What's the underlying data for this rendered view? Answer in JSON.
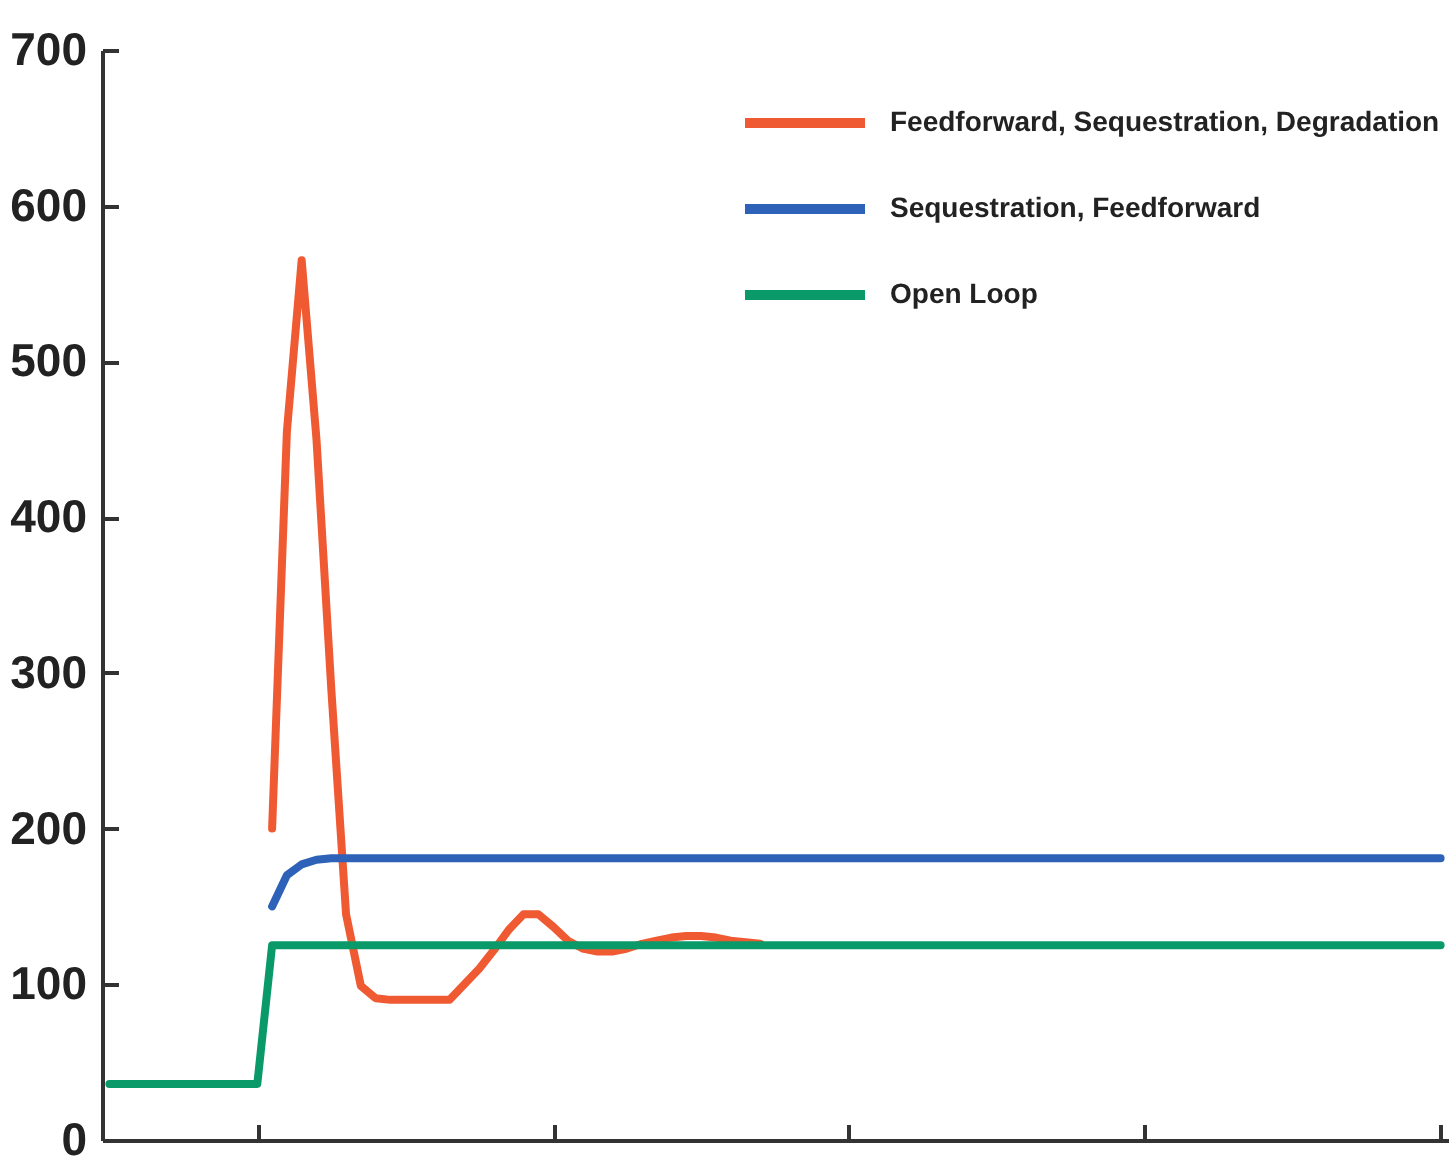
{
  "chart_data": {
    "type": "line",
    "categories": [
      null,
      null,
      null,
      null,
      null,
      null,
      null,
      null,
      null,
      null,
      null,
      null,
      null,
      null,
      null,
      null,
      null,
      null,
      null,
      null,
      null,
      null,
      null,
      null,
      null,
      null,
      null,
      null,
      null,
      null,
      null,
      null,
      null,
      null,
      null,
      null,
      null,
      null,
      null,
      null,
      null,
      null,
      null,
      null,
      null,
      null,
      null,
      null,
      null,
      null,
      null,
      null,
      null,
      null,
      null,
      null,
      null,
      null,
      null,
      null,
      null,
      null,
      null,
      null,
      null,
      null,
      null,
      null,
      null,
      null,
      null,
      null,
      null,
      null,
      null,
      null,
      null,
      null,
      null,
      null,
      null,
      null,
      null,
      null,
      null,
      null,
      null,
      null,
      null,
      null,
      null
    ],
    "ylim": [
      0,
      700
    ],
    "yticks": [
      0,
      100,
      200,
      300,
      400,
      500,
      600,
      700
    ],
    "tick_labels": "y",
    "legend": "top right",
    "series": [
      {
        "name": "Feedforward, Sequestration, Degradation",
        "color": "#f05a32",
        "values": [
          null,
          null,
          null,
          null,
          null,
          null,
          null,
          null,
          null,
          null,
          null,
          200,
          455,
          565,
          450,
          290,
          145,
          99,
          91,
          90,
          90,
          90,
          90,
          90,
          100,
          110,
          122,
          135,
          145,
          145,
          137,
          128,
          123,
          121,
          121,
          123,
          126,
          128,
          130,
          131,
          131,
          130,
          128,
          127,
          126,
          null,
          null,
          null,
          null,
          null,
          null,
          null,
          null,
          null,
          null,
          null,
          null,
          null,
          null,
          null,
          null,
          null,
          null,
          null,
          null,
          null,
          null,
          null,
          null,
          null,
          null,
          null,
          null,
          null,
          null,
          null,
          null,
          null,
          null,
          null,
          null,
          null,
          null,
          null,
          null,
          null,
          null,
          null,
          null,
          null,
          null
        ]
      },
      {
        "name": "Sequestration, Feedforward",
        "color": "#2e62b8",
        "values": [
          null,
          null,
          null,
          null,
          null,
          null,
          null,
          null,
          null,
          null,
          null,
          150,
          170,
          177,
          180,
          181,
          181,
          181,
          181,
          181,
          181,
          181,
          181,
          181,
          181,
          181,
          181,
          181,
          181,
          181,
          181,
          181,
          181,
          181,
          181,
          181,
          181,
          181,
          181,
          181,
          181,
          181,
          181,
          181,
          181,
          181,
          181,
          181,
          181,
          181,
          181,
          181,
          181,
          181,
          181,
          181,
          181,
          181,
          181,
          181,
          181,
          181,
          181,
          181,
          181,
          181,
          181,
          181,
          181,
          181,
          181,
          181,
          181,
          181,
          181,
          181,
          181,
          181,
          181,
          181,
          181,
          181,
          181,
          181,
          181,
          181,
          181,
          181,
          181,
          181,
          181
        ]
      },
      {
        "name": "Open Loop",
        "color": "#0a9a6a",
        "values": [
          36,
          36,
          36,
          36,
          36,
          36,
          36,
          36,
          36,
          36,
          36,
          125,
          125,
          125,
          125,
          125,
          125,
          125,
          125,
          125,
          125,
          125,
          125,
          125,
          125,
          125,
          125,
          125,
          125,
          125,
          125,
          125,
          125,
          125,
          125,
          125,
          125,
          125,
          125,
          125,
          125,
          125,
          125,
          125,
          125,
          125,
          125,
          125,
          125,
          125,
          125,
          125,
          125,
          125,
          125,
          125,
          125,
          125,
          125,
          125,
          125,
          125,
          125,
          125,
          125,
          125,
          125,
          125,
          125,
          125,
          125,
          125,
          125,
          125,
          125,
          125,
          125,
          125,
          125,
          125,
          125,
          125,
          125,
          125,
          125,
          125,
          125,
          125,
          125,
          125,
          125
        ]
      }
    ]
  }
}
